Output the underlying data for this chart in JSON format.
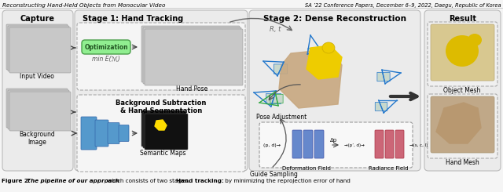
{
  "title_left": "Reconstructing Hand-Held Objects from Monocular Video",
  "title_right": "SA ’22 Conference Papers, December 6–9, 2022, Daegu, Republic of Korea",
  "section_capture": "Capture",
  "section_stage1": "Stage 1: Hand Tracking",
  "section_stage2": "Stage 2: Dense Reconstruction",
  "section_result": "Result",
  "label_input_video": "Input Video",
  "label_bg_image": "Background\nImage",
  "label_optimization": "Optimization",
  "label_min_e": "min E(ℳ)",
  "label_hand_pose": "Hand Pose",
  "label_bg_sub": "Background Subtraction\n& Hand Segmentation",
  "label_semantic_maps": "Semantic Maps",
  "label_pose_adj": "Pose Adjustment",
  "label_guide_sampling": "Guide Sampling",
  "label_deformation_field": "Deformation Field",
  "label_radiance_field": "Radiance Field",
  "label_object_mesh": "Object Mesh",
  "label_hand_mesh": "Hand Mesh",
  "label_R_t": "R, t",
  "label_pd": "(p, d)→",
  "label_pd2": "→(p’, d)→",
  "label_scl": "→(s, c, l)",
  "label_dp": "Δp",
  "bg_color": "#f5f5f5",
  "opt_box_color": "#90ee90",
  "opt_box_edge": "#4a9e4a",
  "deform_bar_color": "#6688cc",
  "radiance_bar_color": "#cc6677",
  "capture_bg": "#ebebeb",
  "stage1_bg": "#ebebeb",
  "stage2_bg": "#ebebeb",
  "result_bg": "#ebebeb",
  "image_placeholder_color": "#c8c8c8",
  "cnn_color": "#5599cc",
  "semantic_bg": "#111111",
  "arrow_color": "#555555",
  "frustum_color_blue": "#2277cc",
  "frustum_color_green": "#33aa44"
}
